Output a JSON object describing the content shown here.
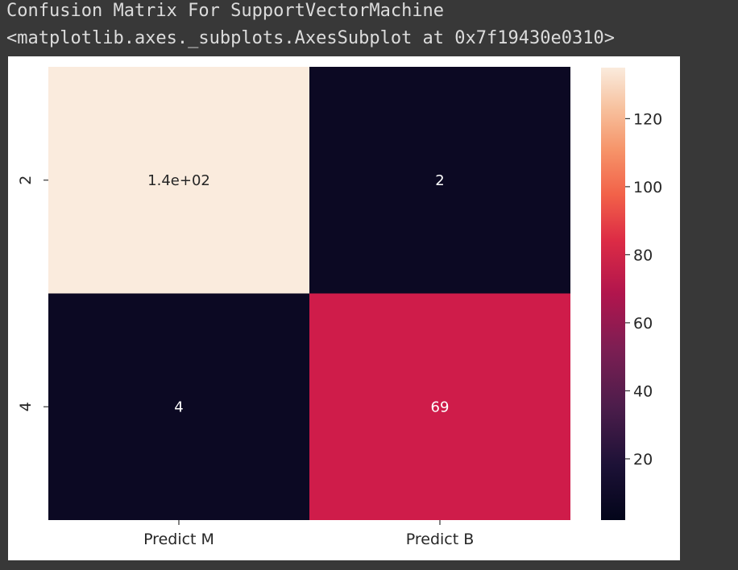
{
  "console": {
    "title_line": "Confusion Matrix For SupportVectorMachine",
    "repr_line": "<matplotlib.axes._subplots.AxesSubplot at 0x7f19430e0310>"
  },
  "chart_data": {
    "type": "heatmap",
    "title": "",
    "x_tick_labels": [
      "Predict M",
      "Predict B"
    ],
    "y_tick_labels": [
      "2",
      "4"
    ],
    "values": [
      [
        135,
        2
      ],
      [
        4,
        69
      ]
    ],
    "annotations": [
      [
        "1.4e+02",
        "2"
      ],
      [
        "4",
        "69"
      ]
    ],
    "colorbar": {
      "colormap": "rocket",
      "range": [
        2,
        135
      ],
      "ticks": [
        20,
        40,
        60,
        80,
        100,
        120
      ]
    },
    "colors": {
      "cell_high": "#faebdd",
      "cell_mid": "#cf1c4a",
      "cell_low": "#0c0923",
      "annotation_dark": "#262626",
      "annotation_light": "#ffffff"
    }
  }
}
